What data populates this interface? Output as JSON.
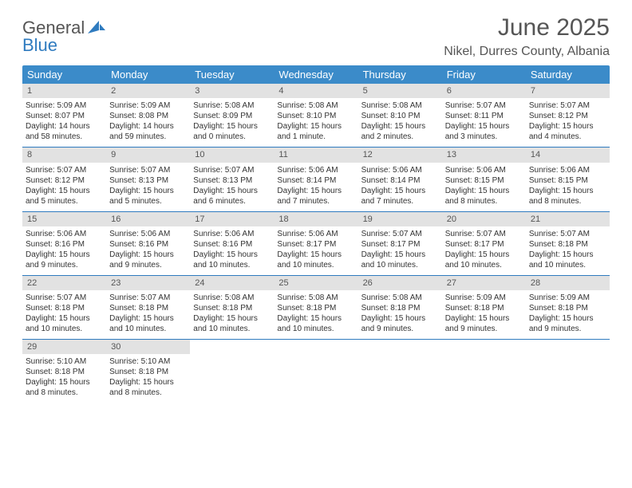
{
  "logo": {
    "text1": "General",
    "text2": "Blue"
  },
  "title": "June 2025",
  "location": "Nikel, Durres County, Albania",
  "day_headers": [
    "Sunday",
    "Monday",
    "Tuesday",
    "Wednesday",
    "Thursday",
    "Friday",
    "Saturday"
  ],
  "colors": {
    "header_bg": "#3b8bc9",
    "header_text": "#ffffff",
    "day_num_bg": "#e2e2e2",
    "week_divider": "#2f7bbf",
    "text": "#333333",
    "title_text": "#555555"
  },
  "weeks": [
    [
      {
        "n": "1",
        "sr": "Sunrise: 5:09 AM",
        "ss": "Sunset: 8:07 PM",
        "dl": "Daylight: 14 hours and 58 minutes."
      },
      {
        "n": "2",
        "sr": "Sunrise: 5:09 AM",
        "ss": "Sunset: 8:08 PM",
        "dl": "Daylight: 14 hours and 59 minutes."
      },
      {
        "n": "3",
        "sr": "Sunrise: 5:08 AM",
        "ss": "Sunset: 8:09 PM",
        "dl": "Daylight: 15 hours and 0 minutes."
      },
      {
        "n": "4",
        "sr": "Sunrise: 5:08 AM",
        "ss": "Sunset: 8:10 PM",
        "dl": "Daylight: 15 hours and 1 minute."
      },
      {
        "n": "5",
        "sr": "Sunrise: 5:08 AM",
        "ss": "Sunset: 8:10 PM",
        "dl": "Daylight: 15 hours and 2 minutes."
      },
      {
        "n": "6",
        "sr": "Sunrise: 5:07 AM",
        "ss": "Sunset: 8:11 PM",
        "dl": "Daylight: 15 hours and 3 minutes."
      },
      {
        "n": "7",
        "sr": "Sunrise: 5:07 AM",
        "ss": "Sunset: 8:12 PM",
        "dl": "Daylight: 15 hours and 4 minutes."
      }
    ],
    [
      {
        "n": "8",
        "sr": "Sunrise: 5:07 AM",
        "ss": "Sunset: 8:12 PM",
        "dl": "Daylight: 15 hours and 5 minutes."
      },
      {
        "n": "9",
        "sr": "Sunrise: 5:07 AM",
        "ss": "Sunset: 8:13 PM",
        "dl": "Daylight: 15 hours and 5 minutes."
      },
      {
        "n": "10",
        "sr": "Sunrise: 5:07 AM",
        "ss": "Sunset: 8:13 PM",
        "dl": "Daylight: 15 hours and 6 minutes."
      },
      {
        "n": "11",
        "sr": "Sunrise: 5:06 AM",
        "ss": "Sunset: 8:14 PM",
        "dl": "Daylight: 15 hours and 7 minutes."
      },
      {
        "n": "12",
        "sr": "Sunrise: 5:06 AM",
        "ss": "Sunset: 8:14 PM",
        "dl": "Daylight: 15 hours and 7 minutes."
      },
      {
        "n": "13",
        "sr": "Sunrise: 5:06 AM",
        "ss": "Sunset: 8:15 PM",
        "dl": "Daylight: 15 hours and 8 minutes."
      },
      {
        "n": "14",
        "sr": "Sunrise: 5:06 AM",
        "ss": "Sunset: 8:15 PM",
        "dl": "Daylight: 15 hours and 8 minutes."
      }
    ],
    [
      {
        "n": "15",
        "sr": "Sunrise: 5:06 AM",
        "ss": "Sunset: 8:16 PM",
        "dl": "Daylight: 15 hours and 9 minutes."
      },
      {
        "n": "16",
        "sr": "Sunrise: 5:06 AM",
        "ss": "Sunset: 8:16 PM",
        "dl": "Daylight: 15 hours and 9 minutes."
      },
      {
        "n": "17",
        "sr": "Sunrise: 5:06 AM",
        "ss": "Sunset: 8:16 PM",
        "dl": "Daylight: 15 hours and 10 minutes."
      },
      {
        "n": "18",
        "sr": "Sunrise: 5:06 AM",
        "ss": "Sunset: 8:17 PM",
        "dl": "Daylight: 15 hours and 10 minutes."
      },
      {
        "n": "19",
        "sr": "Sunrise: 5:07 AM",
        "ss": "Sunset: 8:17 PM",
        "dl": "Daylight: 15 hours and 10 minutes."
      },
      {
        "n": "20",
        "sr": "Sunrise: 5:07 AM",
        "ss": "Sunset: 8:17 PM",
        "dl": "Daylight: 15 hours and 10 minutes."
      },
      {
        "n": "21",
        "sr": "Sunrise: 5:07 AM",
        "ss": "Sunset: 8:18 PM",
        "dl": "Daylight: 15 hours and 10 minutes."
      }
    ],
    [
      {
        "n": "22",
        "sr": "Sunrise: 5:07 AM",
        "ss": "Sunset: 8:18 PM",
        "dl": "Daylight: 15 hours and 10 minutes."
      },
      {
        "n": "23",
        "sr": "Sunrise: 5:07 AM",
        "ss": "Sunset: 8:18 PM",
        "dl": "Daylight: 15 hours and 10 minutes."
      },
      {
        "n": "24",
        "sr": "Sunrise: 5:08 AM",
        "ss": "Sunset: 8:18 PM",
        "dl": "Daylight: 15 hours and 10 minutes."
      },
      {
        "n": "25",
        "sr": "Sunrise: 5:08 AM",
        "ss": "Sunset: 8:18 PM",
        "dl": "Daylight: 15 hours and 10 minutes."
      },
      {
        "n": "26",
        "sr": "Sunrise: 5:08 AM",
        "ss": "Sunset: 8:18 PM",
        "dl": "Daylight: 15 hours and 9 minutes."
      },
      {
        "n": "27",
        "sr": "Sunrise: 5:09 AM",
        "ss": "Sunset: 8:18 PM",
        "dl": "Daylight: 15 hours and 9 minutes."
      },
      {
        "n": "28",
        "sr": "Sunrise: 5:09 AM",
        "ss": "Sunset: 8:18 PM",
        "dl": "Daylight: 15 hours and 9 minutes."
      }
    ],
    [
      {
        "n": "29",
        "sr": "Sunrise: 5:10 AM",
        "ss": "Sunset: 8:18 PM",
        "dl": "Daylight: 15 hours and 8 minutes."
      },
      {
        "n": "30",
        "sr": "Sunrise: 5:10 AM",
        "ss": "Sunset: 8:18 PM",
        "dl": "Daylight: 15 hours and 8 minutes."
      },
      null,
      null,
      null,
      null,
      null
    ]
  ]
}
